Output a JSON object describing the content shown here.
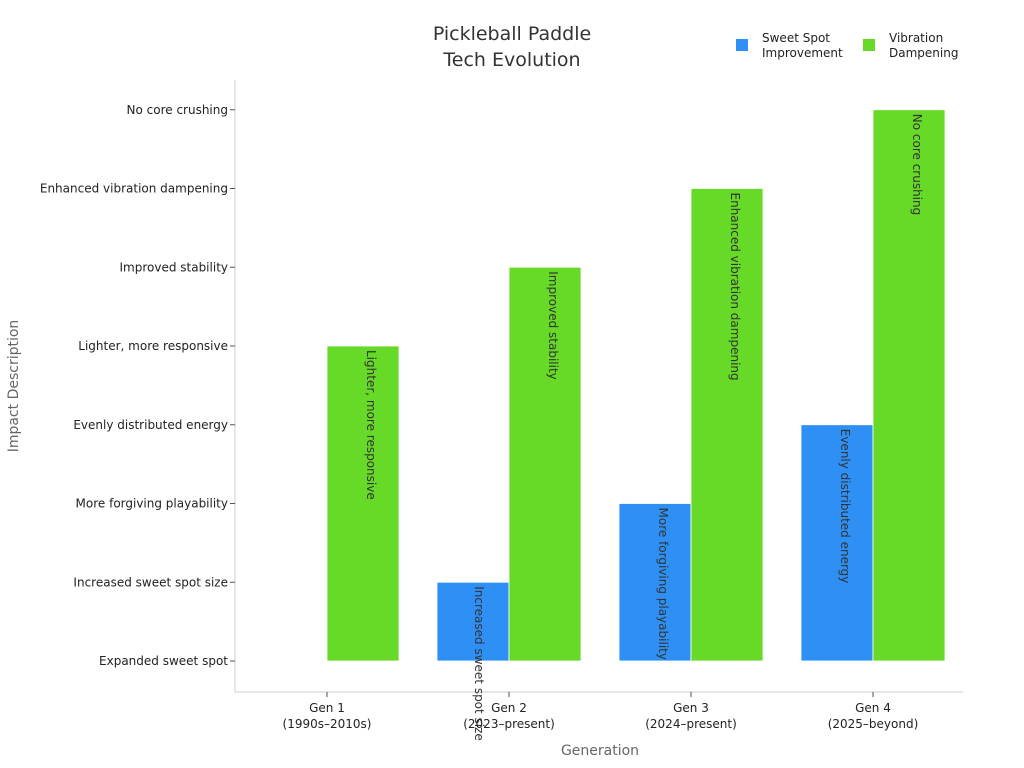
{
  "chart_data": {
    "type": "bar",
    "title": [
      "Pickleball Paddle",
      "Tech Evolution"
    ],
    "xlabel": "Generation",
    "ylabel": "Impact Description",
    "categories": [
      [
        "Gen 1",
        "(1990s–2010s)"
      ],
      [
        "Gen 2",
        "(2023–present)"
      ],
      [
        "Gen 3",
        "(2024–present)"
      ],
      [
        "Gen 4",
        "(2025–beyond)"
      ]
    ],
    "y_categories": [
      "Expanded sweet spot",
      "Increased sweet spot size",
      "More forgiving playability",
      "Evenly distributed energy",
      "Lighter, more responsive",
      "Improved stability",
      "Enhanced vibration dampening",
      "No core crushing"
    ],
    "series": [
      {
        "name": "Sweet Spot Improvement",
        "color": "#2e90f5",
        "values": [
          null,
          "Increased sweet spot size",
          "More forgiving playability",
          "Evenly distributed energy"
        ]
      },
      {
        "name": "Vibration Dampening",
        "color": "#66da26",
        "values": [
          "Lighter, more responsive",
          "Improved stability",
          "Enhanced vibration dampening",
          "No core crushing"
        ]
      }
    ],
    "legend_labels": [
      [
        "Sweet Spot",
        "Improvement"
      ],
      [
        "Vibration",
        "Dampening"
      ]
    ],
    "legend_position": "top-right",
    "grid": false
  }
}
